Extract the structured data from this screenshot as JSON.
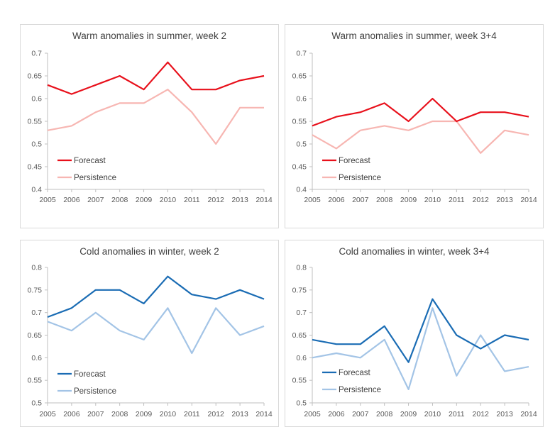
{
  "chart_data": [
    {
      "type": "line",
      "title": "Warm anomalies in summer, week 2",
      "categories": [
        "2005",
        "2006",
        "2007",
        "2008",
        "2009",
        "2010",
        "2011",
        "2012",
        "2013",
        "2014"
      ],
      "yticks": [
        "0.4",
        "0.45",
        "0.5",
        "0.55",
        "0.6",
        "0.65",
        "0.7"
      ],
      "ylim": [
        0.4,
        0.7
      ],
      "grid": false,
      "legend_position": "bottom-left",
      "series": [
        {
          "name": "Forecast",
          "color": "#e8101b",
          "values": [
            0.63,
            0.61,
            0.63,
            0.65,
            0.62,
            0.68,
            0.62,
            0.62,
            0.64,
            0.65
          ]
        },
        {
          "name": "Persistence",
          "color": "#f7b6b2",
          "values": [
            0.53,
            0.54,
            0.57,
            0.59,
            0.59,
            0.62,
            0.57,
            0.5,
            0.58,
            0.58
          ]
        }
      ]
    },
    {
      "type": "line",
      "title": "Warm anomalies in summer, week 3+4",
      "categories": [
        "2005",
        "2006",
        "2007",
        "2008",
        "2009",
        "2010",
        "2011",
        "2012",
        "2013",
        "2014"
      ],
      "yticks": [
        "0.4",
        "0.45",
        "0.5",
        "0.55",
        "0.6",
        "0.65",
        "0.7"
      ],
      "ylim": [
        0.4,
        0.7
      ],
      "grid": false,
      "legend_position": "bottom-left",
      "series": [
        {
          "name": "Forecast",
          "color": "#e8101b",
          "values": [
            0.54,
            0.56,
            0.57,
            0.59,
            0.55,
            0.6,
            0.55,
            0.57,
            0.57,
            0.56
          ]
        },
        {
          "name": "Persistence",
          "color": "#f7b6b2",
          "values": [
            0.52,
            0.49,
            0.53,
            0.54,
            0.53,
            0.55,
            0.55,
            0.48,
            0.53,
            0.52
          ]
        }
      ]
    },
    {
      "type": "line",
      "title": "Cold anomalies in winter, week 2",
      "categories": [
        "2005",
        "2006",
        "2007",
        "2008",
        "2009",
        "2010",
        "2011",
        "2012",
        "2013",
        "2014"
      ],
      "yticks": [
        "0.5",
        "0.55",
        "0.6",
        "0.65",
        "0.7",
        "0.75",
        "0.8"
      ],
      "ylim": [
        0.5,
        0.8
      ],
      "grid": false,
      "legend_position": "bottom-left",
      "series": [
        {
          "name": "Forecast",
          "color": "#1a6cb4",
          "values": [
            0.69,
            0.71,
            0.75,
            0.75,
            0.72,
            0.78,
            0.74,
            0.73,
            0.75,
            0.73
          ]
        },
        {
          "name": "Persistence",
          "color": "#a3c4e6",
          "values": [
            0.68,
            0.66,
            0.7,
            0.66,
            0.64,
            0.71,
            0.61,
            0.71,
            0.65,
            0.67
          ]
        }
      ]
    },
    {
      "type": "line",
      "title": "Cold anomalies in winter, week 3+4",
      "categories": [
        "2005",
        "2006",
        "2007",
        "2008",
        "2009",
        "2010",
        "2011",
        "2012",
        "2013",
        "2014"
      ],
      "yticks": [
        "0.5",
        "0.55",
        "0.6",
        "0.65",
        "0.7",
        "0.75",
        "0.8"
      ],
      "ylim": [
        0.5,
        0.8
      ],
      "grid": false,
      "legend_position": "bottom-left",
      "series": [
        {
          "name": "Forecast",
          "color": "#1a6cb4",
          "values": [
            0.64,
            0.63,
            0.63,
            0.67,
            0.59,
            0.73,
            0.65,
            0.62,
            0.65,
            0.64
          ]
        },
        {
          "name": "Persistence",
          "color": "#a3c4e6",
          "values": [
            0.6,
            0.61,
            0.6,
            0.64,
            0.53,
            0.71,
            0.56,
            0.65,
            0.57,
            0.58
          ]
        }
      ]
    }
  ]
}
